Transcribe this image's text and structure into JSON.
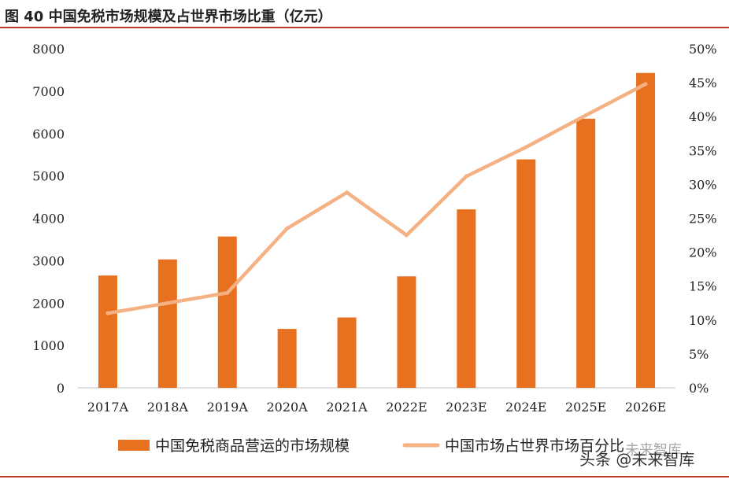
{
  "figure": {
    "title": "图 40 中国免税市场规模及占世界市场比重（亿元）"
  },
  "watermark": {
    "text": "头条 @未来智库",
    "ghost_text": "未来智库"
  },
  "colors": {
    "bar": "#e8711f",
    "line": "#f4b183",
    "axis": "#bfbfbf",
    "accent_rule": "#c0392b"
  },
  "chart_data": {
    "type": "bar",
    "categories": [
      "2017A",
      "2018A",
      "2019A",
      "2020A",
      "2021A",
      "2022E",
      "2023E",
      "2024E",
      "2025E",
      "2026E"
    ],
    "series": [
      {
        "name": "中国免税商品营运的市场规模",
        "type": "bar",
        "axis": "left",
        "values": [
          2650,
          3030,
          3570,
          1390,
          1660,
          2630,
          4210,
          5390,
          6350,
          7430
        ]
      },
      {
        "name": "中国市场占世界市场百分比",
        "type": "line",
        "axis": "right",
        "values": [
          11.0,
          12.5,
          14.0,
          23.5,
          28.8,
          22.5,
          31.2,
          35.5,
          40.2,
          44.8
        ]
      }
    ],
    "y_left": {
      "lim": [
        0,
        8000
      ],
      "ticks": [
        "0",
        "1000",
        "2000",
        "3000",
        "4000",
        "5000",
        "6000",
        "7000",
        "8000"
      ]
    },
    "y_right": {
      "lim": [
        0,
        50
      ],
      "ticks": [
        "0%",
        "5%",
        "10%",
        "15%",
        "20%",
        "25%",
        "30%",
        "35%",
        "40%",
        "45%",
        "50%"
      ]
    },
    "legend_position": "bottom",
    "grid": false
  }
}
